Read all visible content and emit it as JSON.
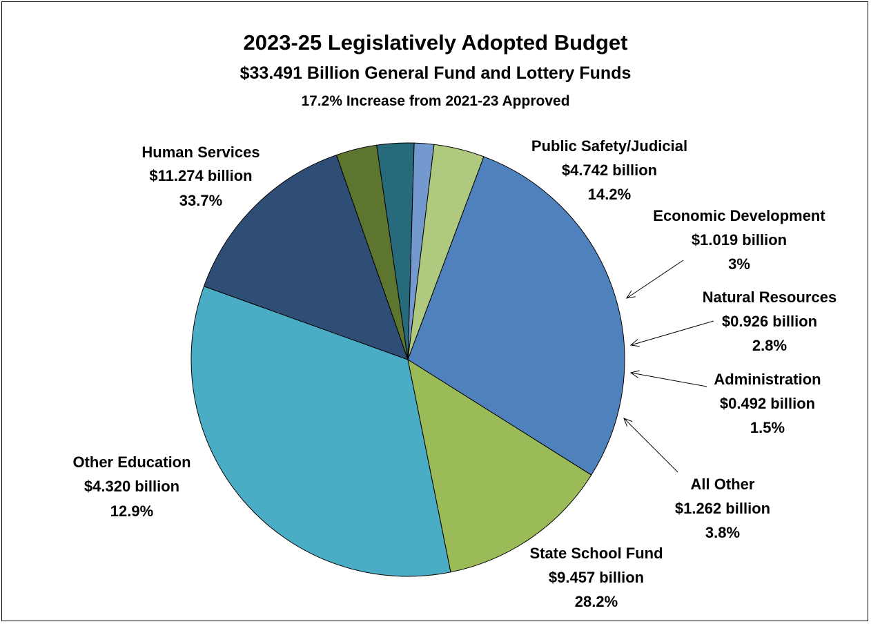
{
  "chart_data": {
    "type": "pie",
    "title": "2023-25 Legislatively Adopted Budget",
    "subtitle": "$33.491 Billion General Fund and Lottery Funds",
    "subtitle2": "17.2% Increase from 2021-23 Approved",
    "units": "billion",
    "slices": [
      {
        "name": "Human Services",
        "amount": "$11.274 billion",
        "percent": "33.7%",
        "value": 11.274,
        "color": "#4BACC6"
      },
      {
        "name": "Public Safety/Judicial",
        "amount": "$4.742 billion",
        "percent": "14.2%",
        "value": 4.742,
        "color": "#2E4E75"
      },
      {
        "name": "Economic Development",
        "amount": "$1.019 billion",
        "percent": "3%",
        "value": 1.019,
        "color": "#5E7530"
      },
      {
        "name": "Natural Resources",
        "amount": "$0.926 billion",
        "percent": "2.8%",
        "value": 0.926,
        "color": "#276A7C"
      },
      {
        "name": "Administration",
        "amount": "$0.492 billion",
        "percent": "1.5%",
        "value": 0.492,
        "color": "#7399CF"
      },
      {
        "name": "All Other",
        "amount": "$1.262 billion",
        "percent": "3.8%",
        "value": 1.262,
        "color": "#AFCA7E"
      },
      {
        "name": "State School Fund",
        "amount": "$9.457 billion",
        "percent": "28.2%",
        "value": 9.457,
        "color": "#4F81BD"
      },
      {
        "name": "Other Education",
        "amount": "$4.320 billion",
        "percent": "12.9%",
        "value": 4.32,
        "color": "#9BBB59"
      }
    ]
  }
}
